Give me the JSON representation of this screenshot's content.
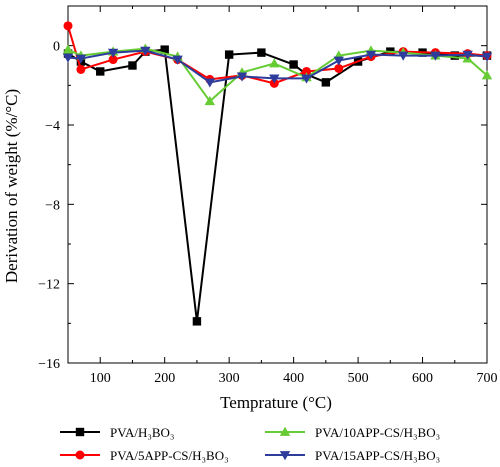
{
  "chart_data": {
    "type": "line",
    "xlabel": "Temprature (°C)",
    "ylabel": "Derivation of weight (%/°C)",
    "xlim": [
      50,
      700
    ],
    "ylim": [
      -16,
      2
    ],
    "x_ticks": [
      "100",
      "200",
      "300",
      "400",
      "500",
      "600",
      "700"
    ],
    "y_ticks": [
      "0",
      "-4",
      "-8",
      "-12",
      "-16"
    ],
    "legend_position": "bottom",
    "series": [
      {
        "name": "PVA/H₃BO₃",
        "color": "#000000",
        "marker": "square",
        "x": [
          50,
          70,
          100,
          150,
          170,
          200,
          250,
          300,
          350,
          400,
          420,
          450,
          500,
          550,
          600,
          650,
          700
        ],
        "y": [
          -0.4,
          -0.8,
          -1.3,
          -1.0,
          -0.3,
          -0.2,
          -13.9,
          -0.45,
          -0.35,
          -0.95,
          -1.45,
          -1.85,
          -0.8,
          -0.3,
          -0.35,
          -0.5,
          -0.5
        ]
      },
      {
        "name": "PVA/5APP-CS/H₃BO₃",
        "color": "#ff0000",
        "marker": "circle",
        "x": [
          50,
          70,
          120,
          170,
          220,
          270,
          320,
          370,
          420,
          470,
          520,
          570,
          620,
          670,
          700
        ],
        "y": [
          1.0,
          -1.2,
          -0.7,
          -0.3,
          -0.7,
          -1.7,
          -1.5,
          -1.9,
          -1.3,
          -1.15,
          -0.55,
          -0.3,
          -0.35,
          -0.4,
          -0.5
        ]
      },
      {
        "name": "PVA/10APP-CS/H₃BO₃",
        "color": "#66cc33",
        "marker": "triangle-up",
        "x": [
          50,
          70,
          120,
          170,
          220,
          270,
          320,
          370,
          420,
          470,
          520,
          570,
          620,
          670,
          700
        ],
        "y": [
          -0.2,
          -0.5,
          -0.3,
          -0.15,
          -0.55,
          -2.8,
          -1.35,
          -0.9,
          -1.6,
          -0.5,
          -0.25,
          -0.35,
          -0.5,
          -0.65,
          -1.5
        ]
      },
      {
        "name": "PVA/15APP-CS/H₃BO₃",
        "color": "#2e3d9c",
        "marker": "triangle-down",
        "x": [
          50,
          70,
          120,
          170,
          220,
          270,
          320,
          370,
          420,
          470,
          520,
          570,
          620,
          670,
          700
        ],
        "y": [
          -0.6,
          -0.65,
          -0.35,
          -0.25,
          -0.7,
          -1.85,
          -1.55,
          -1.65,
          -1.65,
          -0.75,
          -0.45,
          -0.5,
          -0.5,
          -0.45,
          -0.55
        ]
      }
    ]
  }
}
